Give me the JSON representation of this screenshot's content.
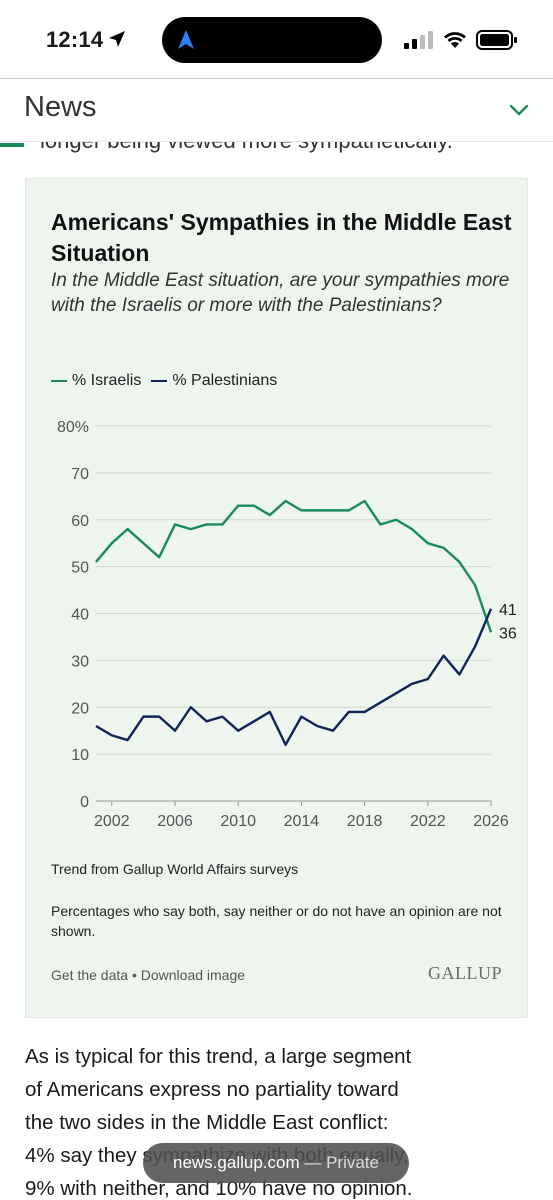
{
  "status_bar": {
    "time": "12:14",
    "icons": [
      "location-arrow-icon",
      "navigation-arrow-icon",
      "cellular-signal-icon",
      "wifi-icon",
      "battery-icon"
    ]
  },
  "header": {
    "title": "News",
    "menu_icon": "chevron-down-icon",
    "accent_color": "#1b8a5a"
  },
  "article_cut_text": "longer being viewed more sympathetically.",
  "chart_card": {
    "title": "Americans' Sympathies in the Middle East Situation",
    "subtitle": "In the Middle East situation, are your sympathies more with the Israelis or more with the Palestinians?",
    "source_note": "Trend from Gallup World Affairs surveys",
    "footnote": "Percentages who say both, say neither or do not have an opinion are not shown.",
    "link_get_data": "Get the data",
    "link_separator": " • ",
    "link_download": "Download image",
    "logo_text": "GALLUP"
  },
  "chart_data": {
    "type": "line",
    "title": "Americans' Sympathies in the Middle East Situation",
    "xlim": [
      2001,
      2026
    ],
    "ylim": [
      0,
      80
    ],
    "x_ticks": [
      2002,
      2006,
      2010,
      2014,
      2018,
      2022,
      2026
    ],
    "y_ticks": [
      0,
      10,
      20,
      30,
      40,
      50,
      60,
      70,
      80
    ],
    "y_tick_labels": [
      "0",
      "10",
      "20",
      "30",
      "40",
      "50",
      "60",
      "70",
      "80%"
    ],
    "grid": true,
    "legend_position": "top-left",
    "x": [
      2001,
      2002,
      2003,
      2004,
      2005,
      2006,
      2007,
      2008,
      2009,
      2010,
      2011,
      2012,
      2013,
      2014,
      2015,
      2016,
      2017,
      2018,
      2019,
      2020,
      2021,
      2022,
      2023,
      2024,
      2025,
      2026
    ],
    "series": [
      {
        "name": "% Israelis",
        "color": "#1b8a5a",
        "values": [
          51,
          55,
          58,
          55,
          52,
          59,
          58,
          59,
          59,
          63,
          63,
          61,
          64,
          62,
          62,
          62,
          62,
          64,
          59,
          60,
          58,
          55,
          54,
          51,
          46,
          36
        ],
        "end_label": "36"
      },
      {
        "name": "% Palestinians",
        "color": "#0f2557",
        "values": [
          16,
          14,
          13,
          18,
          18,
          15,
          20,
          17,
          18,
          15,
          17,
          19,
          12,
          18,
          16,
          15,
          19,
          19,
          21,
          23,
          25,
          26,
          31,
          27,
          33,
          41
        ],
        "end_label": "41"
      }
    ]
  },
  "body_text": [
    "As is typical for this trend, a large segment",
    "of Americans express no partiality toward",
    "the two sides in the Middle East conflict:",
    "4% say they sympathize with both equally,",
    "9% with neither, and 10% have no opinion."
  ],
  "url_pill": {
    "domain": "news.gallup.com",
    "separator": " — ",
    "mode": "Private"
  }
}
